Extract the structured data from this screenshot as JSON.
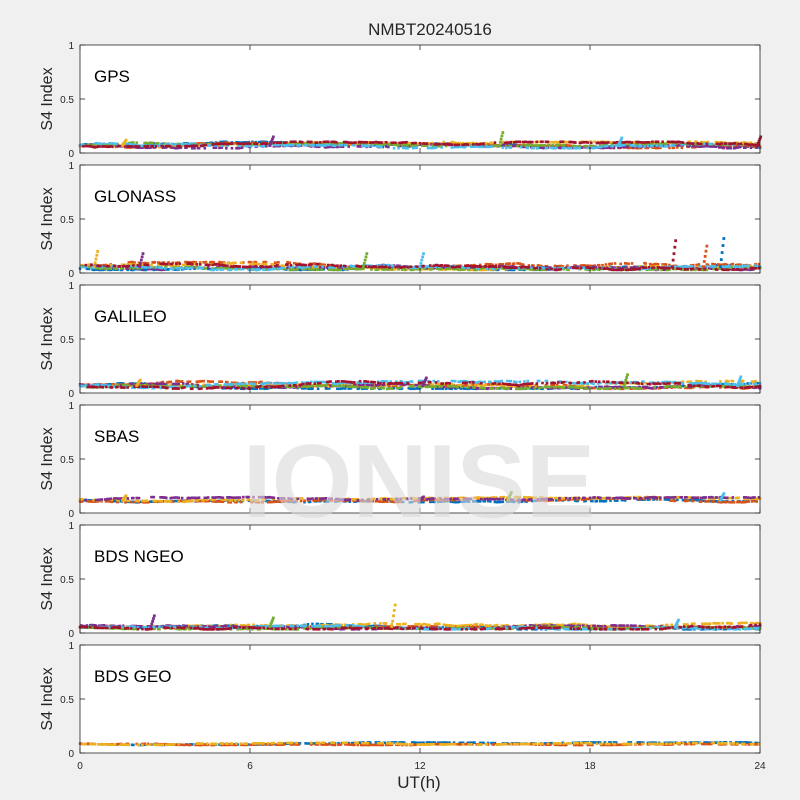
{
  "chart_data": {
    "type": "scatter",
    "title": "NMBT20240516",
    "xlabel": "UT(h)",
    "ylabel": "S4 Index",
    "xlim": [
      0,
      24
    ],
    "ylim": [
      0,
      1
    ],
    "xticks": [
      0,
      6,
      12,
      18,
      24
    ],
    "yticks": [
      0,
      0.5,
      1
    ],
    "grid": false,
    "watermark": "IONISE",
    "series_colors": [
      "#0072BD",
      "#D95319",
      "#EDB120",
      "#7E2F8E",
      "#77AC30",
      "#4DBEEE",
      "#A2142F"
    ],
    "panels": [
      {
        "label": "GPS",
        "baseline": 0.07,
        "spread": 0.025,
        "tracks": 7,
        "spikes": [
          [
            1.5,
            0.12
          ],
          [
            6.7,
            0.15
          ],
          [
            14.8,
            0.19
          ],
          [
            19.0,
            0.14
          ],
          [
            23.9,
            0.15
          ]
        ]
      },
      {
        "label": "GLONASS",
        "baseline": 0.06,
        "spread": 0.03,
        "tracks": 7,
        "spikes": [
          [
            0.5,
            0.2
          ],
          [
            2.1,
            0.18
          ],
          [
            10.0,
            0.18
          ],
          [
            12.0,
            0.18
          ],
          [
            20.9,
            0.3
          ],
          [
            22.6,
            0.32
          ],
          [
            22.0,
            0.25
          ]
        ]
      },
      {
        "label": "GALILEO",
        "baseline": 0.07,
        "spread": 0.03,
        "tracks": 7,
        "spikes": [
          [
            2.0,
            0.12
          ],
          [
            12.1,
            0.14
          ],
          [
            19.2,
            0.17
          ],
          [
            23.2,
            0.15
          ]
        ]
      },
      {
        "label": "SBAS",
        "baseline": 0.12,
        "spread": 0.02,
        "tracks": 4,
        "spikes": [
          [
            1.5,
            0.16
          ],
          [
            12.0,
            0.15
          ],
          [
            15.1,
            0.19
          ],
          [
            22.6,
            0.18
          ]
        ]
      },
      {
        "label": "BDS NGEO",
        "baseline": 0.06,
        "spread": 0.025,
        "tracks": 7,
        "spikes": [
          [
            11.0,
            0.26
          ],
          [
            2.5,
            0.16
          ],
          [
            6.7,
            0.14
          ],
          [
            21.0,
            0.12
          ]
        ]
      },
      {
        "label": "BDS GEO",
        "baseline": 0.085,
        "spread": 0.01,
        "tracks": 3,
        "spikes": []
      }
    ]
  }
}
